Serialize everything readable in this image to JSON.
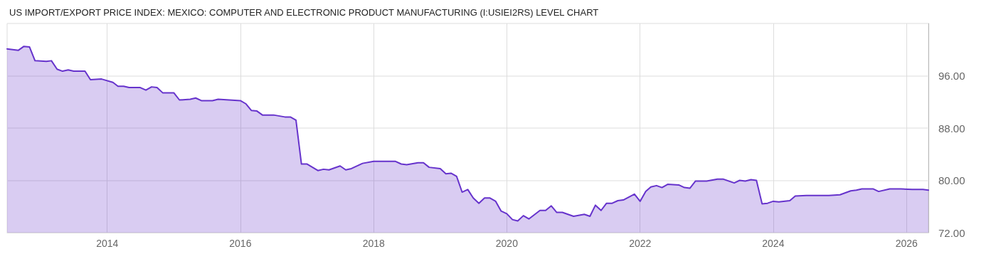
{
  "chart_data": {
    "type": "area",
    "title": "US IMPORT/EXPORT PRICE INDEX: MEXICO: COMPUTER AND ELECTRONIC PRODUCT MANUFACTURING (I:USIEI2RS) LEVEL CHART",
    "x": [
      "2012-07",
      "2012-09",
      "2012-10",
      "2012-11",
      "2012-12",
      "2013-02",
      "2013-03",
      "2013-04",
      "2013-05",
      "2013-06",
      "2013-07",
      "2013-09",
      "2013-10",
      "2013-12",
      "2014-02",
      "2014-03",
      "2014-04",
      "2014-05",
      "2014-07",
      "2014-08",
      "2014-09",
      "2014-10",
      "2014-11",
      "2015-01",
      "2015-02",
      "2015-04",
      "2015-05",
      "2015-06",
      "2015-08",
      "2015-09",
      "2015-11",
      "2016-01",
      "2016-02",
      "2016-03",
      "2016-04",
      "2016-05",
      "2016-07",
      "2016-09",
      "2016-10",
      "2016-11",
      "2016-12",
      "2017-01",
      "2017-03",
      "2017-04",
      "2017-05",
      "2017-07",
      "2017-08",
      "2017-09",
      "2017-11",
      "2018-01",
      "2018-05",
      "2018-06",
      "2018-07",
      "2018-09",
      "2018-10",
      "2018-11",
      "2019-01",
      "2019-02",
      "2019-03",
      "2019-04",
      "2019-05",
      "2019-06",
      "2019-07",
      "2019-08",
      "2019-09",
      "2019-10",
      "2019-11",
      "2019-12",
      "2020-01",
      "2020-02",
      "2020-03",
      "2020-04",
      "2020-05",
      "2020-07",
      "2020-08",
      "2020-09",
      "2020-10",
      "2020-11",
      "2021-01",
      "2021-03",
      "2021-04",
      "2021-05",
      "2021-06",
      "2021-07",
      "2021-08",
      "2021-09",
      "2021-10",
      "2021-12",
      "2022-01",
      "2022-02",
      "2022-03",
      "2022-04",
      "2022-05",
      "2022-06",
      "2022-08",
      "2022-09",
      "2022-10",
      "2022-11",
      "2023-01",
      "2023-03",
      "2023-04",
      "2023-06",
      "2023-07",
      "2023-08",
      "2023-09",
      "2023-10",
      "2023-11",
      "2023-12",
      "2024-01",
      "2024-02",
      "2024-04",
      "2024-05",
      "2024-07",
      "2024-08",
      "2024-11",
      "2025-01",
      "2025-03",
      "2025-04",
      "2025-05",
      "2025-07",
      "2025-08",
      "2025-10",
      "2025-12",
      "2026-02",
      "2026-04",
      "2026-05"
    ],
    "series": [
      {
        "color": "#6633cc",
        "values": [
          100.1,
          99.9,
          100.5,
          100.4,
          98.3,
          98.2,
          98.3,
          97.0,
          96.7,
          96.9,
          96.7,
          96.7,
          95.4,
          95.5,
          95.0,
          94.4,
          94.4,
          94.2,
          94.2,
          93.8,
          94.3,
          94.2,
          93.4,
          93.4,
          92.3,
          92.4,
          92.6,
          92.2,
          92.2,
          92.4,
          92.3,
          92.2,
          91.7,
          90.7,
          90.6,
          90.0,
          90.0,
          89.7,
          89.7,
          89.2,
          82.5,
          82.5,
          81.5,
          81.7,
          81.6,
          82.2,
          81.6,
          81.8,
          82.6,
          82.9,
          82.9,
          82.5,
          82.4,
          82.7,
          82.7,
          82.0,
          81.8,
          81.0,
          81.1,
          80.6,
          78.2,
          78.6,
          77.3,
          76.5,
          77.3,
          77.3,
          76.8,
          75.3,
          74.9,
          74.0,
          73.8,
          74.6,
          74.1,
          75.4,
          75.4,
          76.1,
          75.1,
          75.1,
          74.5,
          74.8,
          74.5,
          76.2,
          75.4,
          76.5,
          76.5,
          76.9,
          77.0,
          77.9,
          76.8,
          78.3,
          79.0,
          79.2,
          78.9,
          79.4,
          79.3,
          78.9,
          78.8,
          79.9,
          79.9,
          80.2,
          80.2,
          79.6,
          80.0,
          79.9,
          80.1,
          80.0,
          76.4,
          76.5,
          76.8,
          76.7,
          76.9,
          77.6,
          77.7,
          77.7,
          77.7,
          77.8,
          78.4,
          78.5,
          78.7,
          78.7,
          78.3,
          78.7,
          78.7,
          78.6,
          78.6,
          78.5
        ]
      }
    ],
    "xlim": [
      "2012-07",
      "2026-05"
    ],
    "xticks": [
      {
        "value": "2014",
        "label": "2014"
      },
      {
        "value": "2016",
        "label": "2016"
      },
      {
        "value": "2018",
        "label": "2018"
      },
      {
        "value": "2020",
        "label": "2020"
      },
      {
        "value": "2022",
        "label": "2022"
      },
      {
        "value": "2024",
        "label": "2024"
      },
      {
        "value": "2026",
        "label": "2026"
      }
    ],
    "ylim": [
      72,
      104
    ],
    "yticks": [
      {
        "value": 72,
        "label": "72.00"
      },
      {
        "value": 80,
        "label": "80.00"
      },
      {
        "value": 88,
        "label": "88.00"
      },
      {
        "value": 96,
        "label": "96.00"
      }
    ],
    "grid": true
  }
}
